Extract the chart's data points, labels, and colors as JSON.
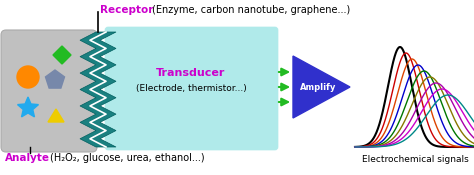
{
  "bg_color": "#ffffff",
  "analyte_box_color": "#c0c0c0",
  "transducer_box_color": "#b0eaea",
  "zigzag_color": "#1a8080",
  "amplify_arrow_color": "#3030cc",
  "green_arrow_color": "#22bb22",
  "receptor_label_color": "#cc00cc",
  "analyte_label_color": "#cc00cc",
  "transducer_label_color": "#cc00cc",
  "receptor_text": "Receptor",
  "receptor_subtext": "(Enzyme, carbon nanotube, graphene...)",
  "analyte_text": "Analyte",
  "analyte_subtext": "(H₂O₂, glucose, urea, ethanol...)",
  "transducer_text": "Transducer",
  "transducer_subtext": "(Electrode, thermistor...)",
  "amplify_text": "Amplify",
  "electrochemical_text": "Electrochemical signals",
  "curve_colors": [
    "#000000",
    "#cc0000",
    "#dd4400",
    "#0000cc",
    "#007700",
    "#887700",
    "#aa00aa",
    "#cc00cc",
    "#008888"
  ],
  "figsize": [
    4.74,
    1.75
  ],
  "dpi": 100
}
